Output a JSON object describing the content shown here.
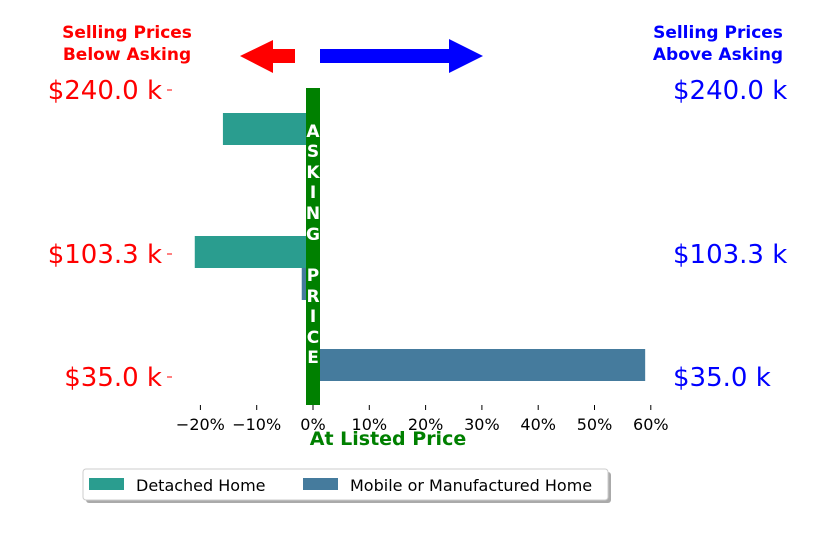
{
  "headers": {
    "left": [
      "Selling Prices",
      "Below Asking"
    ],
    "right": [
      "Selling Prices",
      "Above Asking"
    ]
  },
  "vertical_label": "ASKING PRICE",
  "colors": {
    "below": "#ff0000",
    "above": "#0000ff",
    "asking": "#008000",
    "detached": "#2a9d8f",
    "mobile": "#457b9d"
  },
  "chart_data": {
    "type": "bar",
    "orientation": "horizontal",
    "categories": [
      "$240.0 k",
      "$103.3 k",
      "$35.0 k"
    ],
    "series": [
      {
        "name": "Detached Home",
        "values": [
          -16,
          -21,
          0
        ]
      },
      {
        "name": "Mobile or Manufactured Home",
        "values": [
          -1,
          -2,
          59
        ]
      }
    ],
    "xlabel": "At Listed Price",
    "xticks": [
      "−20%",
      "−10%",
      "0%",
      "10%",
      "20%",
      "30%",
      "40%",
      "50%",
      "60%"
    ],
    "xtick_values": [
      -20,
      -10,
      0,
      10,
      20,
      30,
      40,
      50,
      60
    ],
    "xlim": [
      -24,
      63
    ],
    "legend_position": "bottom"
  }
}
